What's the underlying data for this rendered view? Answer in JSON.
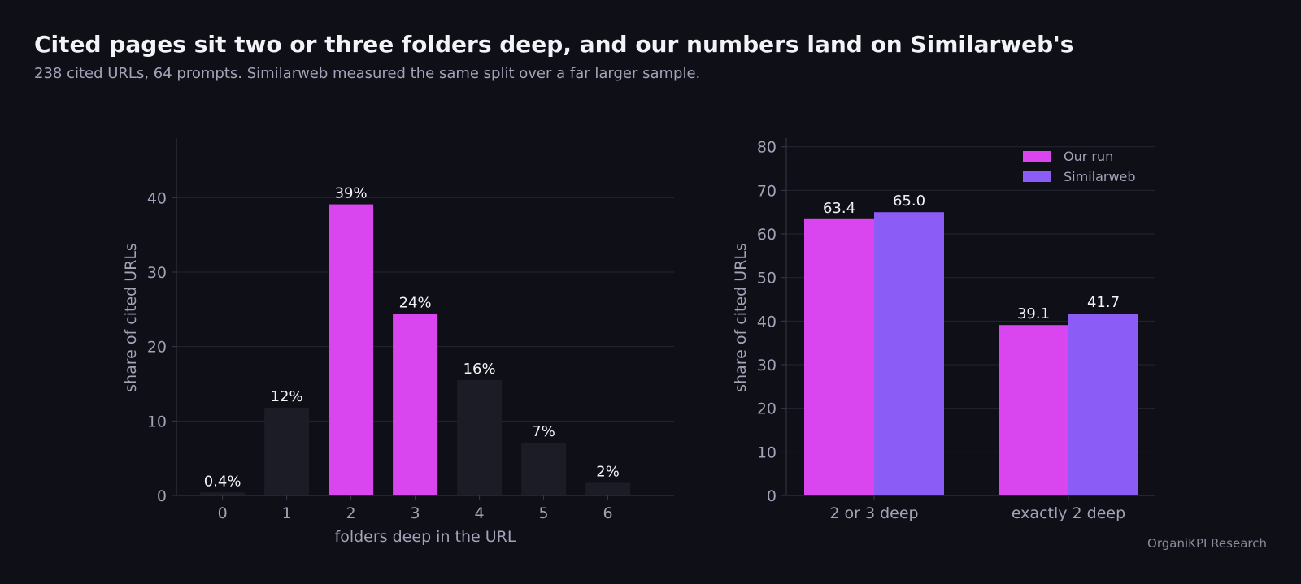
{
  "header": {
    "title": "Cited pages sit two or three folders deep, and our numbers land on Similarweb's",
    "subtitle": "238 cited URLs, 64 prompts. Similarweb measured the same split over a far larger sample."
  },
  "footer": {
    "credit": "OrganiKPI Research"
  },
  "colors": {
    "background": "#0f0f17",
    "highlight": "#d946ef",
    "muted_bar": "#1c1c27",
    "similarweb": "#8b5cf6",
    "grid": "#262633",
    "axis_text": "#a3a3b8",
    "label_text": "#f2f2f7"
  },
  "chart_data": [
    {
      "type": "bar",
      "categories": [
        "0",
        "1",
        "2",
        "3",
        "4",
        "5",
        "6"
      ],
      "values": [
        0.4,
        11.8,
        39.1,
        24.4,
        15.5,
        7.1,
        1.7
      ],
      "value_labels": [
        "0.4%",
        "12%",
        "39%",
        "24%",
        "16%",
        "7%",
        "2%"
      ],
      "highlighted": [
        false,
        false,
        true,
        true,
        false,
        false,
        false
      ],
      "xlabel": "folders deep in the URL",
      "ylabel": "share of cited URLs",
      "ylim": [
        0,
        48
      ],
      "yticks": [
        0,
        10,
        20,
        30,
        40
      ],
      "grid": true
    },
    {
      "type": "bar",
      "categories": [
        "2 or 3 deep",
        "exactly 2 deep"
      ],
      "series": [
        {
          "name": "Our run",
          "values": [
            63.4,
            39.1
          ],
          "value_labels": [
            "63.4",
            "39.1"
          ],
          "color": "#d946ef"
        },
        {
          "name": "Similarweb",
          "values": [
            65.0,
            41.7
          ],
          "value_labels": [
            "65.0",
            "41.7"
          ],
          "color": "#8b5cf6"
        }
      ],
      "xlabel": "",
      "ylabel": "share of cited URLs",
      "ylim": [
        0,
        82
      ],
      "yticks": [
        0,
        10,
        20,
        30,
        40,
        50,
        60,
        70,
        80
      ],
      "grid": true,
      "legend": "top-right"
    }
  ]
}
